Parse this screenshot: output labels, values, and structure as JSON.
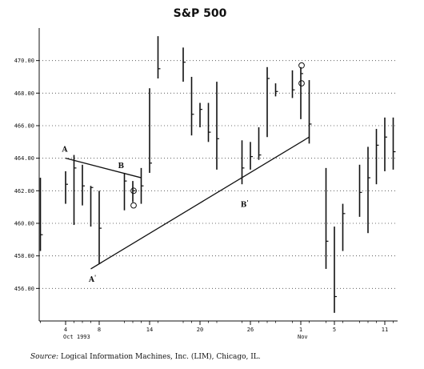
{
  "chart_data": {
    "type": "bar",
    "subtype": "high-low-close",
    "title": "S&P 500",
    "xlabel": "",
    "ylabel": "",
    "ylim": [
      454,
      472
    ],
    "y_ticks": [
      "456.00",
      "458.00",
      "460.00",
      "462.00",
      "464.00",
      "466.00",
      "468.00",
      "470.00"
    ],
    "y_tick_values": [
      456,
      458,
      460,
      462,
      464,
      466,
      468,
      470
    ],
    "grid": "horizontal dotted",
    "x_tick_labels": [
      {
        "label": "4",
        "day": 4,
        "month": "Oct 1993"
      },
      {
        "label": "8",
        "day": 8
      },
      {
        "label": "14",
        "day": 14
      },
      {
        "label": "20",
        "day": 20
      },
      {
        "label": "26",
        "day": 26
      },
      {
        "label": "1",
        "day": 32,
        "month": "Nov"
      },
      {
        "label": "5",
        "day": 36
      },
      {
        "label": "11",
        "day": 42
      }
    ],
    "bars": [
      {
        "day": 1,
        "high": 462.8,
        "low": 458.3,
        "close": 459.3
      },
      {
        "day": 4,
        "high": 463.2,
        "low": 461.2,
        "close": 462.4
      },
      {
        "day": 5,
        "high": 464.2,
        "low": 459.9,
        "close": 463.4
      },
      {
        "day": 6,
        "high": 463.6,
        "low": 461.1,
        "close": 462.3
      },
      {
        "day": 7,
        "high": 462.3,
        "low": 459.8,
        "close": 462.2
      },
      {
        "day": 8,
        "high": 462.0,
        "low": 457.5,
        "close": 459.7
      },
      {
        "day": 11,
        "high": 463.1,
        "low": 460.8,
        "close": 462.6
      },
      {
        "day": 12,
        "high": 462.6,
        "low": 461.3,
        "close": 462.0
      },
      {
        "day": 13,
        "high": 463.4,
        "low": 461.2,
        "close": 462.3
      },
      {
        "day": 14,
        "high": 468.3,
        "low": 463.1,
        "close": 463.7
      },
      {
        "day": 15,
        "high": 471.5,
        "low": 468.9,
        "close": 469.5
      },
      {
        "day": 18,
        "high": 470.8,
        "low": 468.7,
        "close": 469.9
      },
      {
        "day": 19,
        "high": 469.0,
        "low": 465.4,
        "close": 466.7
      },
      {
        "day": 20,
        "high": 467.4,
        "low": 465.9,
        "close": 467.0
      },
      {
        "day": 21,
        "high": 467.4,
        "low": 465.0,
        "close": 465.6
      },
      {
        "day": 22,
        "high": 468.7,
        "low": 463.3,
        "close": 465.2
      },
      {
        "day": 25,
        "high": 465.1,
        "low": 462.4,
        "close": 463.4
      },
      {
        "day": 26,
        "high": 465.0,
        "low": 463.3,
        "close": 464.1
      },
      {
        "day": 27,
        "high": 465.9,
        "low": 463.9,
        "close": 464.2
      },
      {
        "day": 28,
        "high": 469.6,
        "low": 465.3,
        "close": 468.9
      },
      {
        "day": 29,
        "high": 468.6,
        "low": 467.8,
        "close": 468.1
      },
      {
        "day": 31,
        "high": 469.4,
        "low": 467.7,
        "close": 468.2
      },
      {
        "day": 32,
        "high": 469.6,
        "low": 466.4,
        "close": 469.2
      },
      {
        "day": 33,
        "high": 468.8,
        "low": 464.9,
        "close": 466.1
      },
      {
        "day": 35,
        "high": 463.4,
        "low": 457.2,
        "close": 458.9
      },
      {
        "day": 36,
        "high": 459.8,
        "low": 454.5,
        "close": 455.5
      },
      {
        "day": 37,
        "high": 461.2,
        "low": 458.3,
        "close": 460.6
      },
      {
        "day": 39,
        "high": 463.6,
        "low": 460.4,
        "close": 461.9
      },
      {
        "day": 40,
        "high": 464.7,
        "low": 459.4,
        "close": 462.8
      },
      {
        "day": 41,
        "high": 465.8,
        "low": 462.4,
        "close": 464.8
      },
      {
        "day": 42,
        "high": 466.5,
        "low": 463.2,
        "close": 465.3
      },
      {
        "day": 43,
        "high": 466.5,
        "low": 463.3,
        "close": 464.4
      }
    ],
    "trendlines": [
      {
        "name": "A-B",
        "from": {
          "day": 4,
          "value": 464.0
        },
        "to": {
          "day": 13,
          "value": 462.8
        }
      },
      {
        "name": "A'-B'",
        "from": {
          "day": 7,
          "value": 457.2
        },
        "to": {
          "day": 33,
          "value": 465.3
        }
      }
    ],
    "circle_markers": [
      {
        "day": 12,
        "value": 462.0
      },
      {
        "day": 12,
        "value": 461.1
      },
      {
        "day": 32,
        "value": 469.7
      },
      {
        "day": 32,
        "value": 468.6
      }
    ],
    "annotations": [
      {
        "text": "A",
        "day": 3.9,
        "value": 464.4
      },
      {
        "text": "B",
        "day": 10.6,
        "value": 463.4
      },
      {
        "text": "A",
        "prime": "'",
        "day": 7.2,
        "value": 456.4
      },
      {
        "text": "B",
        "prime": "'",
        "day": 25.3,
        "value": 461.0
      }
    ]
  },
  "source": {
    "label": "Source:",
    "text": "Logical Information Machines, Inc. (LIM), Chicago, IL."
  }
}
